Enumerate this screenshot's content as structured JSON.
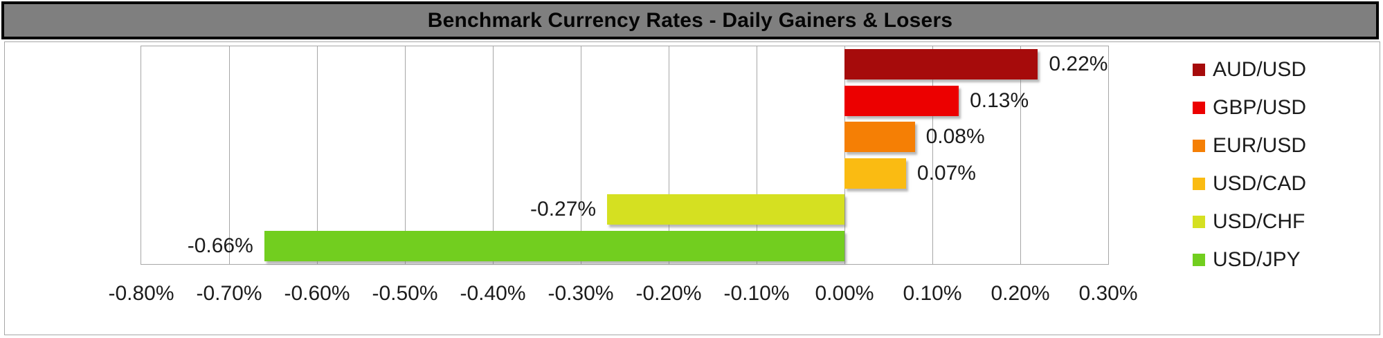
{
  "title": "Benchmark Currency Rates - Daily Gainers & Losers",
  "chart_data": {
    "type": "bar",
    "orientation": "horizontal",
    "title": "Benchmark Currency Rates - Daily Gainers & Losers",
    "categories": [
      "AUD/USD",
      "GBP/USD",
      "EUR/USD",
      "USD/CAD",
      "USD/CHF",
      "USD/JPY"
    ],
    "values": [
      0.22,
      0.13,
      0.08,
      0.07,
      -0.27,
      -0.66
    ],
    "value_labels": [
      "0.22%",
      "0.13%",
      "0.08%",
      "0.07%",
      "-0.27%",
      "-0.66%"
    ],
    "bar_colors": [
      "#A60B0B",
      "#EC0000",
      "#F57F05",
      "#FABB12",
      "#D5E021",
      "#72CE1F"
    ],
    "xlim": [
      -0.8,
      0.3
    ],
    "x_tick_labels": [
      "-0.80%",
      "-0.70%",
      "-0.60%",
      "-0.50%",
      "-0.40%",
      "-0.30%",
      "-0.20%",
      "-0.10%",
      "0.00%",
      "0.10%",
      "0.20%",
      "0.30%"
    ],
    "grid": "vertical",
    "legend_position": "right",
    "unit": "percent"
  },
  "legend": [
    {
      "label": "AUD/USD",
      "color": "#A60B0B"
    },
    {
      "label": "GBP/USD",
      "color": "#EC0000"
    },
    {
      "label": "EUR/USD",
      "color": "#F57F05"
    },
    {
      "label": "USD/CAD",
      "color": "#FABB12"
    },
    {
      "label": "USD/CHF",
      "color": "#D5E021"
    },
    {
      "label": "USD/JPY",
      "color": "#72CE1F"
    }
  ],
  "style_colors": {
    "title_bg": "#7F7F7F",
    "title_border": "#000000",
    "title_text": "#050505",
    "chart_border": "#A6A6A6",
    "gridline": "#A6A6A6",
    "label_text": "#1C1C1C",
    "background": "#FFFFFF"
  }
}
